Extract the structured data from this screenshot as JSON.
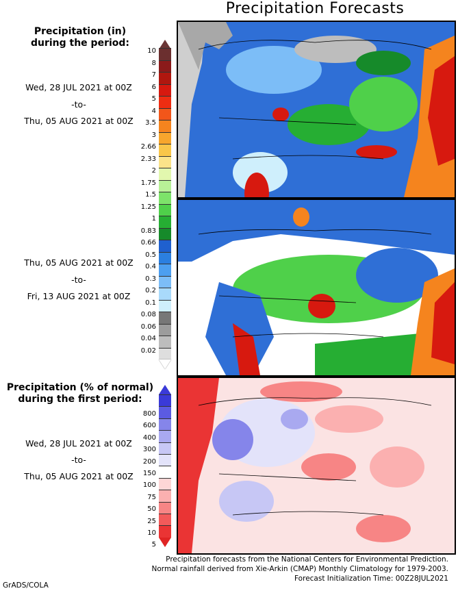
{
  "title": "Precipitation Forecasts",
  "section1": {
    "heading_line1": "Precipitation (in)",
    "heading_line2": "during the period:",
    "period1": {
      "start": "Wed, 28 JUL 2021 at 00Z",
      "sep": "-to-",
      "end": "Thu, 05 AUG 2021 at 00Z"
    },
    "period2": {
      "start": "Thu, 05 AUG 2021 at 00Z",
      "sep": "-to-",
      "end": "Fri, 13 AUG 2021 at 00Z"
    }
  },
  "section2": {
    "heading_line1": "Precipitation (% of normal)",
    "heading_line2": "during the first period:",
    "period": {
      "start": "Wed, 28 JUL 2021 at 00Z",
      "sep": "-to-",
      "end": "Thu, 05 AUG 2021 at 00Z"
    }
  },
  "precip_scale": {
    "labels": [
      "10",
      "8",
      "7",
      "6",
      "5",
      "4",
      "3.5",
      "3",
      "2.66",
      "2.33",
      "2",
      "1.75",
      "1.5",
      "1.25",
      "1",
      "0.83",
      "0.66",
      "0.5",
      "0.4",
      "0.3",
      "0.2",
      "0.1",
      "0.08",
      "0.06",
      "0.04",
      "0.02"
    ],
    "colors": [
      "#6b2f2f",
      "#8b1a1a",
      "#b0170f",
      "#d7190f",
      "#ee2d12",
      "#f2561a",
      "#f5841e",
      "#f7a62d",
      "#f9c64a",
      "#fbe38a",
      "#e2f7ae",
      "#b8f097",
      "#7de36a",
      "#4fd04a",
      "#26ae33",
      "#168a2a",
      "#1f60cf",
      "#2b7fe0",
      "#4d9ff0",
      "#7cbdf7",
      "#a9dafb",
      "#cfeffc",
      "#777777",
      "#9c9c9c",
      "#bdbdbd",
      "#dedede"
    ],
    "top_tip_color": "#6b3636"
  },
  "pct_scale": {
    "labels": [
      "800",
      "600",
      "400",
      "300",
      "200",
      "150",
      "100",
      "75",
      "50",
      "25",
      "10",
      "5"
    ],
    "colors": [
      "#3a3ad8",
      "#5b5be2",
      "#8585ea",
      "#a9a9f0",
      "#c7c7f5",
      "#e3e3fa",
      "#ffffff",
      "#fdd6d6",
      "#fbb0b0",
      "#f78585",
      "#f25a5a",
      "#ea3434"
    ],
    "top_tip_color": "#3a3ad8",
    "bottom_tip_color": "#e02424"
  },
  "footer": {
    "line1": "Precipitation forecasts from the National Centers for Environmental Prediction.",
    "line2": "Normal rainfall derived from Xie-Arkin (CMAP) Monthly Climatology for 1979-2003.",
    "line3": "Forecast Initialization Time: 00Z28JUL2021"
  },
  "credit": "GrADS/COLA"
}
